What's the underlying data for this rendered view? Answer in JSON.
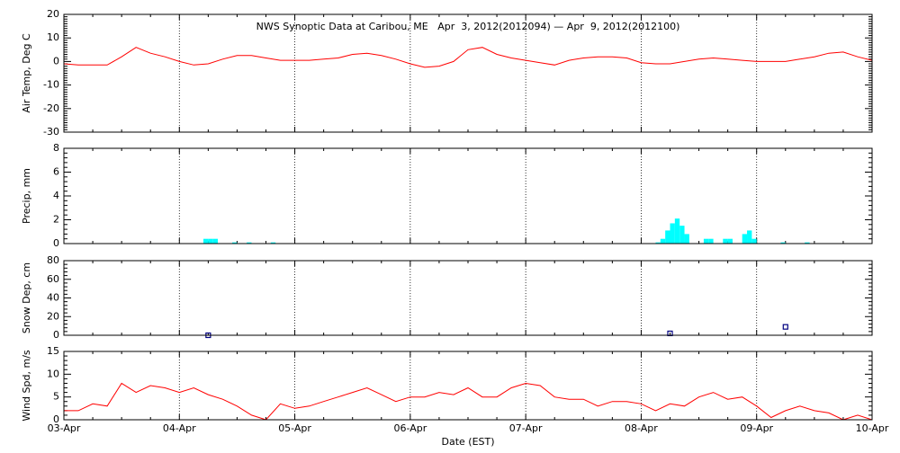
{
  "chart_data": [
    {
      "type": "line",
      "title": "NWS Synoptic Data at Caribou, ME   Apr  3, 2012(2012094) — Apr  9, 2012(2012100)",
      "ylabel": "Air Temp, Deg C",
      "color": "#ff0000",
      "grid": true,
      "ylim": [
        -30,
        20
      ],
      "yticks": [
        -30,
        -20,
        -10,
        0,
        10,
        20
      ],
      "xlim": [
        0,
        168
      ],
      "x": [
        0,
        3,
        6,
        9,
        12,
        15,
        18,
        21,
        24,
        27,
        30,
        33,
        36,
        39,
        42,
        45,
        48,
        51,
        54,
        57,
        60,
        63,
        66,
        69,
        72,
        75,
        78,
        81,
        84,
        87,
        90,
        93,
        96,
        99,
        102,
        105,
        108,
        111,
        114,
        117,
        120,
        123,
        126,
        129,
        132,
        135,
        138,
        141,
        144,
        147,
        150,
        153,
        156,
        159,
        162,
        165,
        168
      ],
      "values": [
        -1,
        -1.5,
        -1.5,
        -1.5,
        2,
        6,
        3.5,
        2,
        0,
        -1.5,
        -1,
        1,
        2.5,
        2.5,
        1.5,
        0.5,
        0.5,
        0.5,
        1,
        1.5,
        3,
        3.5,
        2.5,
        1,
        -1,
        -2.5,
        -2,
        0,
        5,
        6,
        3,
        1.5,
        0.5,
        -0.5,
        -1.5,
        0.5,
        1.5,
        2,
        2,
        1.5,
        -0.5,
        -1,
        -1,
        0,
        1,
        1.5,
        1,
        0.5,
        0,
        0,
        0,
        1,
        2,
        3.5,
        4,
        2,
        0.5
      ]
    },
    {
      "type": "bar",
      "ylabel": "Precip, mm",
      "color": "#00ffff",
      "grid": true,
      "ylim": [
        0,
        8
      ],
      "yticks": [
        0,
        2,
        4,
        6,
        8
      ],
      "xlim": [
        0,
        168
      ],
      "x": [
        29,
        30,
        31,
        35,
        38,
        43,
        123,
        124,
        125,
        126,
        127,
        128,
        129,
        133,
        134,
        137,
        138,
        141,
        142,
        143,
        149,
        154
      ],
      "values": [
        0.4,
        0.4,
        0.4,
        0.1,
        0.1,
        0.1,
        0.1,
        0.4,
        1.1,
        1.7,
        2.1,
        1.5,
        0.8,
        0.4,
        0.4,
        0.4,
        0.4,
        0.8,
        1.1,
        0.4,
        0.1,
        0.1
      ]
    },
    {
      "type": "scatter",
      "ylabel": "Snow Dep, cm",
      "color": "#000080",
      "grid": true,
      "ylim": [
        0,
        80
      ],
      "yticks": [
        0,
        20,
        40,
        60,
        80
      ],
      "xlim": [
        0,
        168
      ],
      "x": [
        30,
        126,
        150
      ],
      "values": [
        0,
        2,
        9
      ]
    },
    {
      "type": "line",
      "ylabel": "Wind Spd, m/s",
      "xlabel": "Date (EST)",
      "color": "#ff0000",
      "grid": true,
      "ylim": [
        0,
        15
      ],
      "yticks": [
        0,
        5,
        10,
        15
      ],
      "xlim": [
        0,
        168
      ],
      "xticks": [
        {
          "value": 0,
          "label": "03-Apr"
        },
        {
          "value": 24,
          "label": "04-Apr"
        },
        {
          "value": 48,
          "label": "05-Apr"
        },
        {
          "value": 72,
          "label": "06-Apr"
        },
        {
          "value": 96,
          "label": "07-Apr"
        },
        {
          "value": 120,
          "label": "08-Apr"
        },
        {
          "value": 144,
          "label": "09-Apr"
        },
        {
          "value": 168,
          "label": "10-Apr"
        }
      ],
      "x": [
        0,
        3,
        6,
        9,
        12,
        15,
        18,
        21,
        24,
        27,
        30,
        33,
        36,
        39,
        42,
        45,
        48,
        51,
        54,
        57,
        60,
        63,
        66,
        69,
        72,
        75,
        78,
        81,
        84,
        87,
        90,
        93,
        96,
        99,
        102,
        105,
        108,
        111,
        114,
        117,
        120,
        123,
        126,
        129,
        132,
        135,
        138,
        141,
        144,
        147,
        150,
        153,
        156,
        159,
        162,
        165,
        168
      ],
      "values": [
        2,
        2,
        3.5,
        3,
        8,
        6,
        7.5,
        7,
        6,
        7,
        5.5,
        4.5,
        3,
        1,
        0,
        3.5,
        2.5,
        3,
        4,
        5,
        6,
        7,
        5.5,
        4,
        5,
        5,
        6,
        5.5,
        7,
        5,
        5,
        7,
        8,
        7.5,
        5,
        4.5,
        4.5,
        3,
        4,
        4,
        3.5,
        2,
        3.5,
        3,
        5,
        6,
        4.5,
        5,
        3,
        0.5,
        2,
        3,
        2,
        1.5,
        0,
        1,
        0
      ]
    }
  ]
}
